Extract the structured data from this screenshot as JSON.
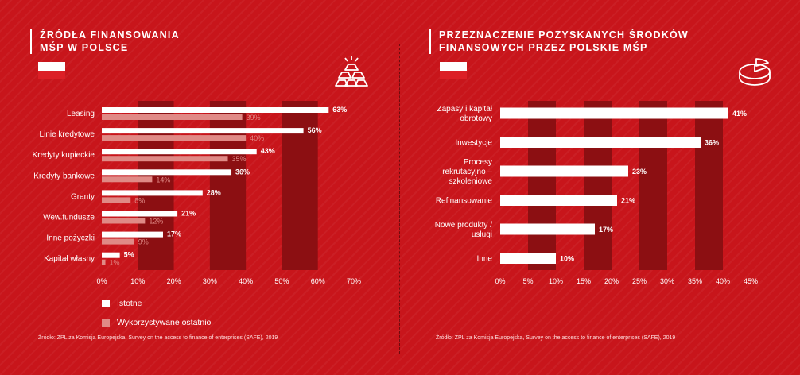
{
  "left_panel": {
    "title_lines": [
      "ŹRÓDŁA FINANSOWANIA",
      "MŚP W POLSCE"
    ],
    "icon": "gold-bars-icon",
    "legend": [
      {
        "label": "Istotne",
        "color": "#ffffff"
      },
      {
        "label": "Wykorzystywane ostatnio",
        "color": "#e08a86"
      }
    ],
    "source": "Źródło: ZPL za Komisja Europejska, Survey on the access to finance of enterprises (SAFE), 2019"
  },
  "right_panel": {
    "title_lines": [
      "PRZEZNACZENIE POZYSKANYCH ŚRODKÓW",
      "FINANSOWYCH PRZEZ POLSKIE MŚP"
    ],
    "icon": "pie-chart-icon",
    "source": "Źródło: ZPL za Komisja Europejska, Survey on the access to finance of enterprises (SAFE), 2019"
  },
  "colors": {
    "background": "#c8151b",
    "band": "#8c0f12",
    "primary_bar": "#ffffff",
    "secondary_bar": "#e08a86",
    "flag_white": "#ffffff",
    "flag_red": "#dc1f26"
  },
  "chart_data": [
    {
      "type": "bar",
      "orientation": "horizontal",
      "title": "ŹRÓDŁA FINANSOWANIA MŚP W POLSCE",
      "categories": [
        "Leasing",
        "Linie kredytowe",
        "Kredyty kupieckie",
        "Kredyty bankowe",
        "Granty",
        "Wew.fundusze",
        "Inne pożyczki",
        "Kapitał własny"
      ],
      "series": [
        {
          "name": "Istotne",
          "values": [
            63,
            56,
            43,
            36,
            28,
            21,
            17,
            5
          ]
        },
        {
          "name": "Wykorzystywane ostatnio",
          "values": [
            39,
            40,
            35,
            14,
            8,
            12,
            9,
            1
          ]
        }
      ],
      "value_suffix": "%",
      "xlim": [
        0,
        70
      ],
      "xticks": [
        "0%",
        "10%",
        "20%",
        "30%",
        "40%",
        "50%",
        "60%",
        "70%"
      ],
      "grid": "alternating vertical bands",
      "legend_position": "bottom-left"
    },
    {
      "type": "bar",
      "orientation": "horizontal",
      "title": "PRZEZNACZENIE POZYSKANYCH ŚRODKÓW FINANSOWYCH PRZEZ POLSKIE MŚP",
      "categories": [
        [
          "Zapasy i kapitał",
          "obrotowy"
        ],
        [
          "Inwestycje"
        ],
        [
          "Procesy",
          "rekrutacyjno –",
          "szkoleniowe"
        ],
        [
          "Refinansowanie"
        ],
        [
          "Nowe produkty /",
          "usługi"
        ],
        [
          "Inne"
        ]
      ],
      "values": [
        41,
        36,
        23,
        21,
        17,
        10
      ],
      "value_suffix": "%",
      "xlim": [
        0,
        45
      ],
      "xticks": [
        "0%",
        "5%",
        "10%",
        "15%",
        "20%",
        "25%",
        "30%",
        "35%",
        "40%",
        "45%"
      ],
      "grid": "alternating vertical bands"
    }
  ]
}
